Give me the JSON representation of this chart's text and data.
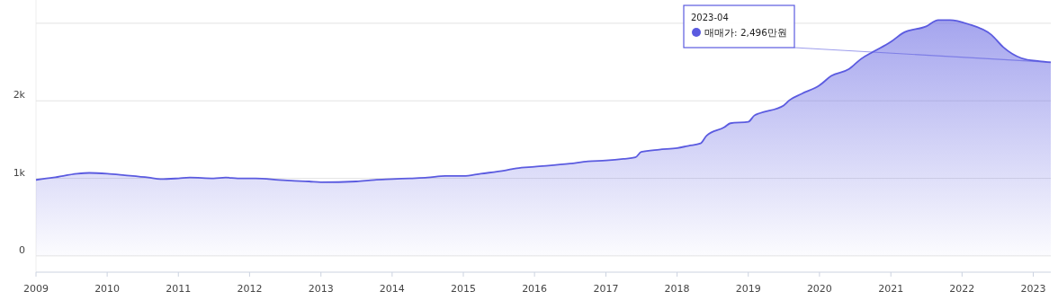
{
  "chart_data": {
    "type": "area",
    "x": [
      "2009-01",
      "2009-04",
      "2009-08",
      "2009-10",
      "2010-01",
      "2010-04",
      "2010-08",
      "2010-10",
      "2011-01",
      "2011-03",
      "2011-07",
      "2011-09",
      "2011-11",
      "2012-02",
      "2012-06",
      "2012-08",
      "2012-11",
      "2013-01",
      "2013-07",
      "2013-10",
      "2014-01",
      "2014-04",
      "2014-07",
      "2014-10",
      "2015-01",
      "2015-04",
      "2015-08",
      "2015-10",
      "2016-01",
      "2016-07",
      "2016-10",
      "2017-01",
      "2017-04",
      "2017-06",
      "2017-07",
      "2017-10",
      "2018-01",
      "2018-03",
      "2018-05",
      "2018-06",
      "2018-09",
      "2018-10",
      "2019-01",
      "2019-02",
      "2019-03",
      "2019-07",
      "2019-08",
      "2019-10",
      "2020-01",
      "2020-03",
      "2020-06",
      "2020-08",
      "2020-10",
      "2021-01",
      "2021-03",
      "2021-07",
      "2021-09",
      "2021-11",
      "2022-02",
      "2022-06",
      "2022-08",
      "2022-11",
      "2023-02",
      "2023-04"
    ],
    "series": [
      {
        "color": "#5b5be0",
        "values": [
          980,
          1010,
          1060,
          1070,
          1060,
          1040,
          1010,
          990,
          1000,
          1010,
          1000,
          1010,
          1000,
          1000,
          980,
          970,
          960,
          950,
          960,
          980,
          990,
          1000,
          1010,
          1030,
          1030,
          1060,
          1100,
          1130,
          1150,
          1190,
          1220,
          1230,
          1250,
          1270,
          1340,
          1370,
          1390,
          1420,
          1450,
          1550,
          1660,
          1710,
          1730,
          1810,
          1840,
          1940,
          2010,
          2090,
          2200,
          2320,
          2410,
          2540,
          2630,
          2760,
          2870,
          2960,
          3040,
          3040,
          2990,
          2850,
          2690,
          2550,
          2510,
          2496
        ]
      }
    ],
    "xlim": [
      "2009-01",
      "2023-04"
    ],
    "xticks": [
      "2009",
      "2010",
      "2011",
      "2012",
      "2013",
      "2014",
      "2015",
      "2016",
      "2017",
      "2018",
      "2019",
      "2020",
      "2021",
      "2022",
      "2023"
    ],
    "ylim": [
      -210,
      3300
    ],
    "yticks": [
      0,
      {
        "value": 1000,
        "label": "1k"
      },
      {
        "value": 2000,
        "label": "2k"
      },
      {
        "value": 3000,
        "label": null
      }
    ],
    "grid": "y",
    "annotations": [
      "2023-04",
      {
        "text": "매매가: 2,496만원",
        "x": "2023-04",
        "y": 2496
      }
    ]
  }
}
